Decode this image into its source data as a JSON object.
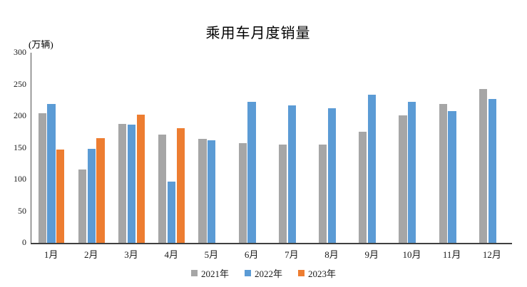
{
  "chart_data": {
    "type": "bar",
    "title": "乘用车月度销量",
    "unit_label": "(万辆)",
    "xlabel": "",
    "ylabel": "(万辆)",
    "categories": [
      "1月",
      "2月",
      "3月",
      "4月",
      "5月",
      "6月",
      "7月",
      "8月",
      "9月",
      "10月",
      "11月",
      "12月"
    ],
    "series": [
      {
        "name": "2021年",
        "color": "#A6A6A6",
        "values": [
          204.5,
          115.6,
          187.4,
          170.4,
          164.6,
          156.9,
          155.1,
          155.2,
          175.1,
          200.7,
          219.2,
          242.2
        ]
      },
      {
        "name": "2022年",
        "color": "#5B9BD5",
        "values": [
          218.6,
          148.7,
          186.4,
          96.5,
          162.3,
          222.2,
          217.4,
          212.5,
          233.2,
          222.9,
          207.9,
          226.8
        ]
      },
      {
        "name": "2023年",
        "color": "#ED7D31",
        "values": [
          146.9,
          165.3,
          201.7,
          181.1,
          null,
          null,
          null,
          null,
          null,
          null,
          null,
          null
        ]
      }
    ],
    "y_axis": {
      "min": 0,
      "max": 300,
      "step": 50,
      "tick_labels": [
        "0",
        "50",
        "100",
        "150",
        "200",
        "250",
        "300"
      ]
    },
    "ylim": [
      0,
      300
    ],
    "grid": false,
    "legend_position": "bottom",
    "axis_color": "#404040",
    "background_color": "#FFFFFF"
  }
}
